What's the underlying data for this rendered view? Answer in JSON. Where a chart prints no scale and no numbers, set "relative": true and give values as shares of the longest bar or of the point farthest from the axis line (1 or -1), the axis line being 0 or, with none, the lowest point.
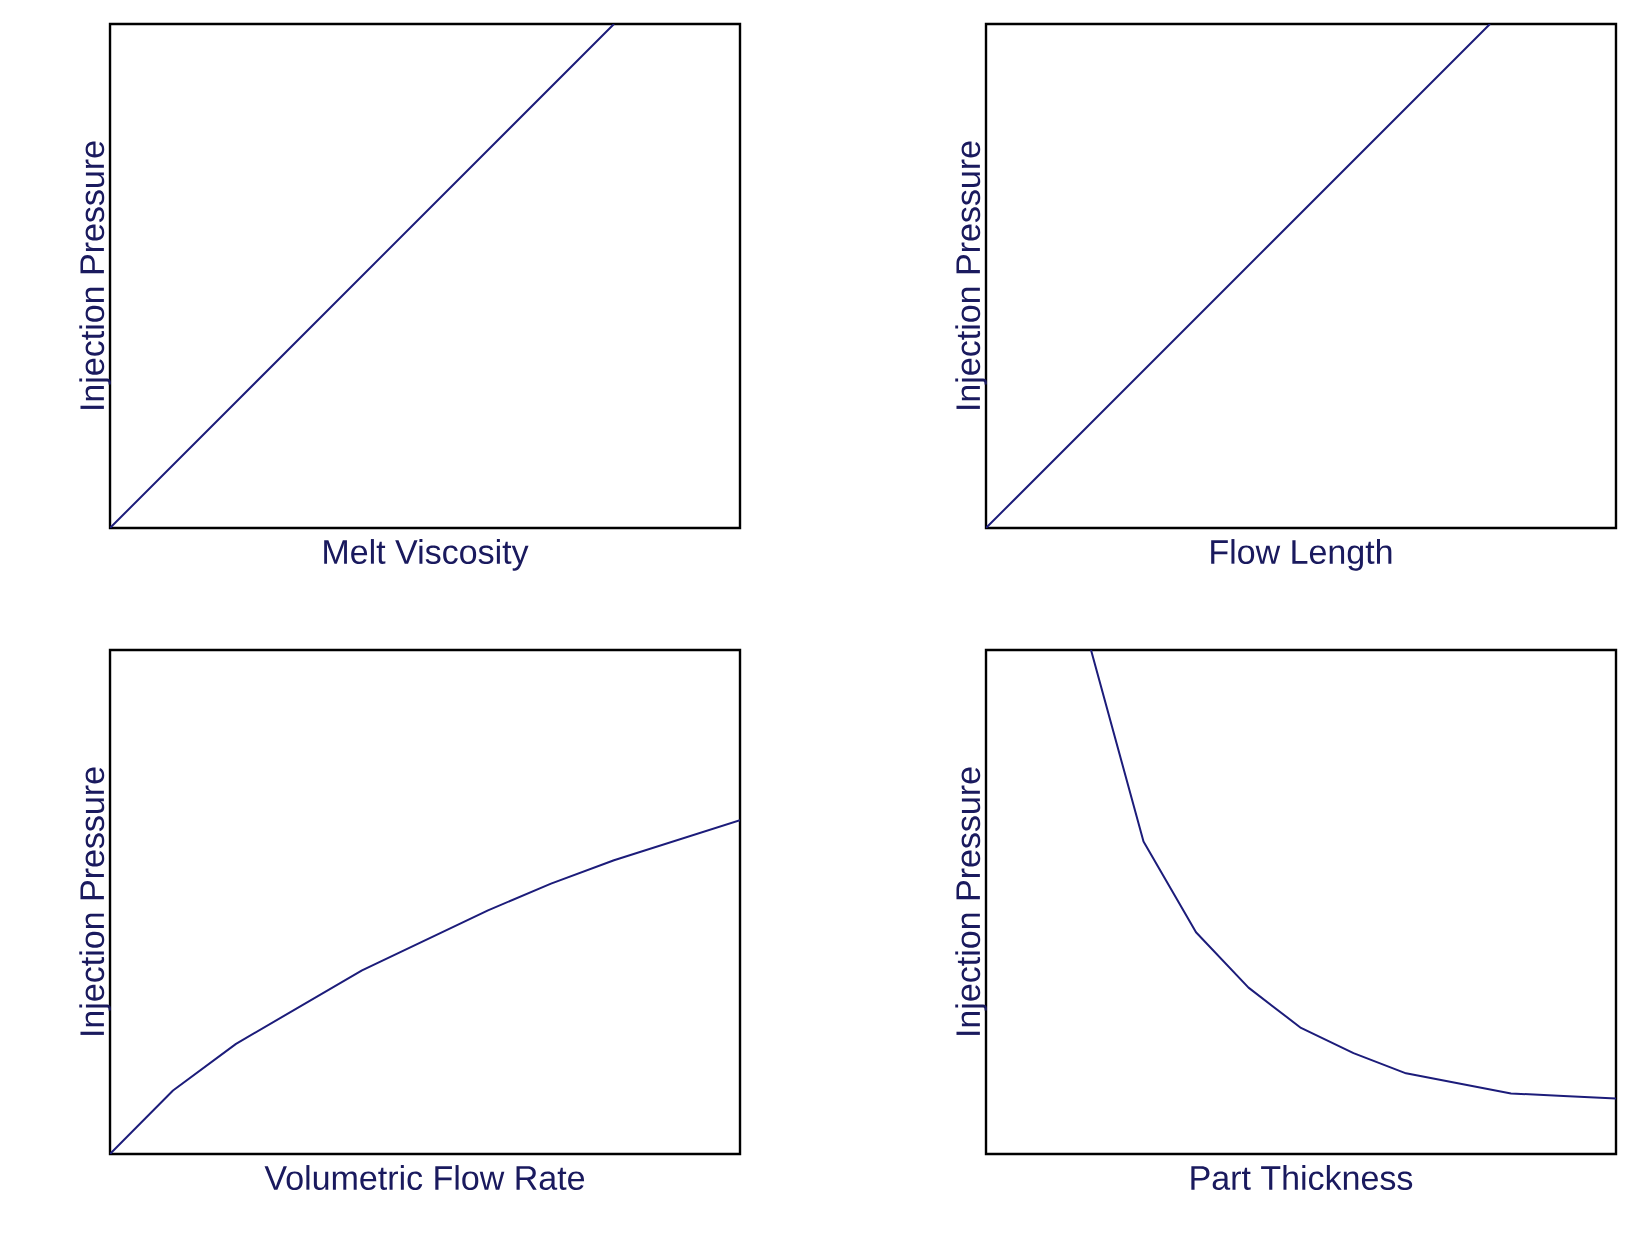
{
  "chart_data": [
    {
      "type": "line",
      "xlabel": "Melt Viscosity",
      "ylabel": "Injection Pressure",
      "relative": true,
      "color": "#1c1c7a",
      "categories": [
        null,
        null,
        null,
        null,
        null,
        null
      ],
      "values": [
        0,
        0.25,
        0.5,
        0.75,
        1,
        null
      ]
    },
    {
      "type": "line",
      "xlabel": "Flow Length",
      "ylabel": "Injection Pressure",
      "relative": true,
      "color": "#1c1c7a",
      "categories": [
        null,
        null,
        null,
        null,
        null,
        null
      ],
      "values": [
        0,
        0.25,
        0.5,
        0.75,
        1,
        null
      ]
    },
    {
      "type": "line",
      "xlabel": "Volumetric Flow Rate",
      "ylabel": "Injection Pressure",
      "relative": true,
      "color": "#1c1c7a",
      "categories": [
        null,
        null,
        null,
        null,
        null,
        null,
        null,
        null,
        null,
        null,
        null
      ],
      "values": [
        0,
        0.19,
        0.33,
        0.44,
        0.55,
        0.64,
        0.73,
        0.81,
        0.88,
        0.94,
        1
      ]
    },
    {
      "type": "line",
      "xlabel": "Part Thickness",
      "ylabel": "Injection Pressure",
      "relative": true,
      "color": "#1c1c7a",
      "categories": [
        null,
        null,
        null,
        null,
        null,
        null,
        null,
        null,
        null,
        null,
        null,
        null,
        null
      ],
      "values": [
        null,
        null,
        1,
        0.62,
        0.44,
        0.33,
        0.25,
        0.2,
        0.16,
        0.14,
        0.12,
        0.115,
        0.11
      ]
    }
  ]
}
